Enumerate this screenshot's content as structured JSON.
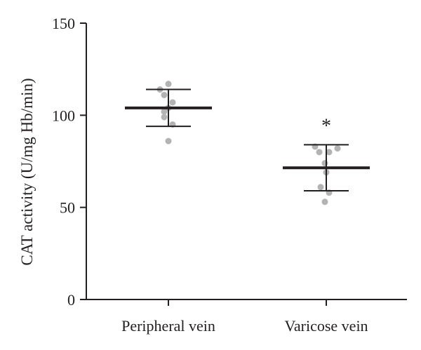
{
  "chart_data": {
    "type": "scatter",
    "ylabel": "CAT activity (U/mg Hb/min)",
    "xlabel": "",
    "ylim": [
      0,
      150
    ],
    "yticks": [
      0,
      50,
      100,
      150
    ],
    "categories": [
      "Peripheral vein",
      "Varicose vein"
    ],
    "groups": [
      {
        "category": "Peripheral vein",
        "mean": 104,
        "sd_upper": 114,
        "sd_lower": 94,
        "points": [
          117,
          114,
          111,
          107,
          104,
          102,
          99,
          95,
          86
        ]
      },
      {
        "category": "Varicose vein",
        "mean": 71.5,
        "sd_upper": 84,
        "sd_lower": 59,
        "points": [
          83,
          82,
          80,
          80,
          74,
          69,
          61,
          58,
          53
        ]
      }
    ],
    "annotations": [
      {
        "category": "Varicose vein",
        "text": "*"
      }
    ],
    "colors": {
      "points": "#b3b3b3",
      "lines": "#231f20"
    },
    "grid": false,
    "legend": "none"
  }
}
